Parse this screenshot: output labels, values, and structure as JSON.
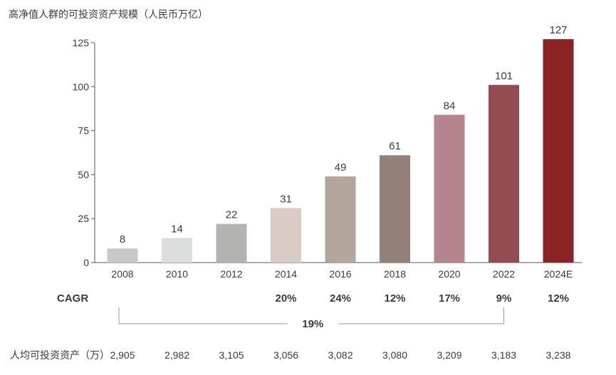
{
  "chart_data": {
    "type": "bar",
    "title": "高净值人群的可投资资产规模（人民币万亿）",
    "categories": [
      "2008",
      "2010",
      "2012",
      "2014",
      "2016",
      "2018",
      "2020",
      "2022",
      "2024E"
    ],
    "values": [
      8,
      14,
      22,
      31,
      49,
      61,
      84,
      101,
      127
    ],
    "colors": [
      "#c8c8c8",
      "#dcdedd",
      "#b3b3b1",
      "#d8ccc4",
      "#b3a69b",
      "#938078",
      "#b5848c",
      "#924c52",
      "#8b2325"
    ],
    "ylim": [
      0,
      125
    ],
    "yticks": [
      0,
      25,
      50,
      75,
      100,
      125
    ],
    "grid": false,
    "cagr": {
      "label": "CAGR",
      "values": [
        "",
        "",
        "",
        "20%",
        "24%",
        "12%",
        "17%",
        "9%",
        "12%"
      ],
      "overall": "19%"
    },
    "per_capita": {
      "label": "人均可投资资产（万）",
      "values": [
        "2,905",
        "2,982",
        "3,105",
        "3,056",
        "3,082",
        "3,080",
        "3,209",
        "3,183",
        "3,238"
      ]
    }
  }
}
